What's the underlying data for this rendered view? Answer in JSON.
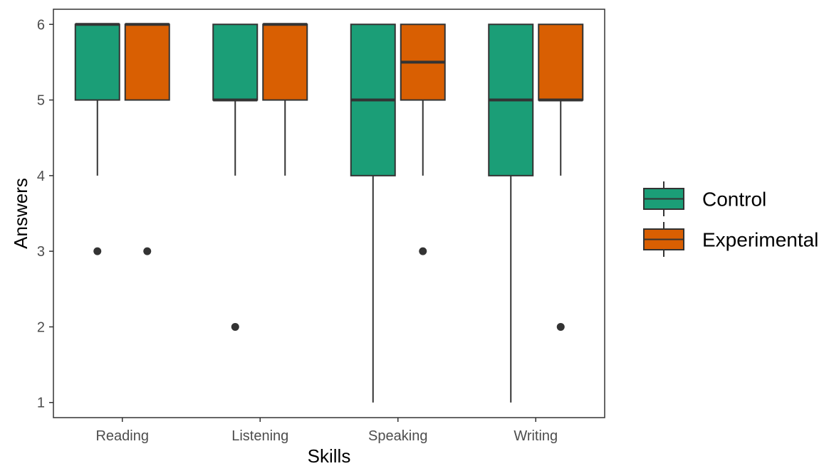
{
  "chart_data": {
    "type": "boxplot",
    "xlabel": "Skills",
    "ylabel": "Answers",
    "ylim": [
      0.8,
      6.2
    ],
    "yticks": [
      1,
      2,
      3,
      4,
      5,
      6
    ],
    "categories": [
      "Reading",
      "Listening",
      "Speaking",
      "Writing"
    ],
    "grid": false,
    "legend_position": "right",
    "series": [
      {
        "name": "Control",
        "color": "#1b9e77",
        "boxes": [
          {
            "min": 4,
            "q1": 5,
            "median": 6,
            "q3": 6,
            "max": 6,
            "outliers": [
              3
            ]
          },
          {
            "min": 4,
            "q1": 5,
            "median": 5,
            "q3": 6,
            "max": 6,
            "outliers": [
              2
            ]
          },
          {
            "min": 1,
            "q1": 4,
            "median": 5,
            "q3": 6,
            "max": 6,
            "outliers": []
          },
          {
            "min": 1,
            "q1": 4,
            "median": 5,
            "q3": 6,
            "max": 6,
            "outliers": []
          }
        ]
      },
      {
        "name": "Experimental",
        "color": "#d95f02",
        "boxes": [
          {
            "min": 5,
            "q1": 5,
            "median": 6,
            "q3": 6,
            "max": 6,
            "outliers": [
              3
            ]
          },
          {
            "min": 4,
            "q1": 5,
            "median": 6,
            "q3": 6,
            "max": 6,
            "outliers": []
          },
          {
            "min": 4,
            "q1": 5,
            "median": 5.5,
            "q3": 6,
            "max": 6,
            "outliers": [
              3
            ]
          },
          {
            "min": 4,
            "q1": 5,
            "median": 5,
            "q3": 6,
            "max": 6,
            "outliers": [
              2
            ]
          }
        ]
      }
    ]
  }
}
